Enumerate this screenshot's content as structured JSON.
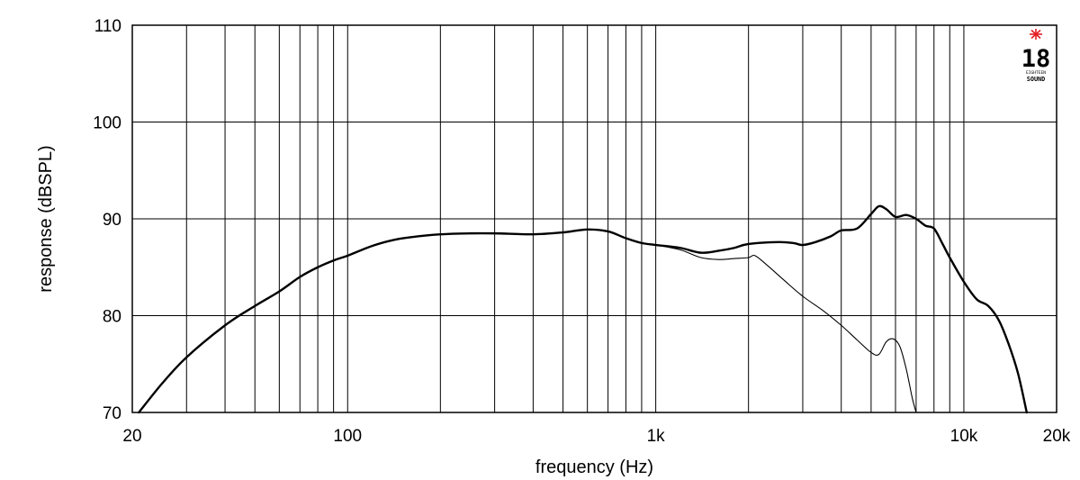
{
  "chart_data": {
    "type": "line",
    "title": "",
    "xlabel": "frequency (Hz)",
    "ylabel": "response (dBSPL)",
    "x_scale": "log",
    "xlim": [
      20,
      20000
    ],
    "ylim": [
      70,
      110
    ],
    "grid": true,
    "x_ticks": [
      {
        "value": 20,
        "label": "20"
      },
      {
        "value": 100,
        "label": "100"
      },
      {
        "value": 1000,
        "label": "1k"
      },
      {
        "value": 10000,
        "label": "10k"
      },
      {
        "value": 20000,
        "label": "20k"
      }
    ],
    "y_ticks": [
      {
        "value": 70,
        "label": "70"
      },
      {
        "value": 80,
        "label": "80"
      },
      {
        "value": 90,
        "label": "90"
      },
      {
        "value": 100,
        "label": "100"
      },
      {
        "value": 110,
        "label": "110"
      }
    ],
    "series": [
      {
        "style": "thick",
        "color": "#000000",
        "points": [
          [
            21,
            70.0
          ],
          [
            25,
            73.0
          ],
          [
            30,
            75.7
          ],
          [
            40,
            79.0
          ],
          [
            50,
            81.0
          ],
          [
            60,
            82.5
          ],
          [
            70,
            84.0
          ],
          [
            80,
            85.0
          ],
          [
            90,
            85.7
          ],
          [
            100,
            86.2
          ],
          [
            120,
            87.2
          ],
          [
            140,
            87.8
          ],
          [
            160,
            88.1
          ],
          [
            200,
            88.4
          ],
          [
            250,
            88.5
          ],
          [
            300,
            88.5
          ],
          [
            400,
            88.4
          ],
          [
            500,
            88.6
          ],
          [
            600,
            88.9
          ],
          [
            700,
            88.7
          ],
          [
            800,
            88.0
          ],
          [
            900,
            87.5
          ],
          [
            1000,
            87.3
          ],
          [
            1200,
            87.0
          ],
          [
            1400,
            86.5
          ],
          [
            1600,
            86.7
          ],
          [
            1800,
            87.0
          ],
          [
            2000,
            87.4
          ],
          [
            2500,
            87.6
          ],
          [
            2800,
            87.5
          ],
          [
            3000,
            87.3
          ],
          [
            3300,
            87.6
          ],
          [
            3700,
            88.2
          ],
          [
            4000,
            88.8
          ],
          [
            4500,
            89.0
          ],
          [
            5000,
            90.5
          ],
          [
            5300,
            91.3
          ],
          [
            5600,
            91.0
          ],
          [
            6000,
            90.2
          ],
          [
            6500,
            90.4
          ],
          [
            7000,
            90.0
          ],
          [
            7500,
            89.3
          ],
          [
            8000,
            89.0
          ],
          [
            8500,
            87.5
          ],
          [
            9000,
            86.0
          ],
          [
            10000,
            83.5
          ],
          [
            11000,
            81.7
          ],
          [
            12000,
            81.0
          ],
          [
            13000,
            79.5
          ],
          [
            14000,
            77.0
          ],
          [
            15000,
            74.0
          ],
          [
            16000,
            70.0
          ]
        ]
      },
      {
        "style": "thin",
        "color": "#000000",
        "points": [
          [
            1000,
            87.3
          ],
          [
            1200,
            86.8
          ],
          [
            1400,
            86.0
          ],
          [
            1600,
            85.8
          ],
          [
            1800,
            85.9
          ],
          [
            2000,
            86.0
          ],
          [
            2100,
            86.2
          ],
          [
            2300,
            85.2
          ],
          [
            2600,
            83.7
          ],
          [
            3000,
            82.0
          ],
          [
            3500,
            80.5
          ],
          [
            4000,
            79.0
          ],
          [
            4500,
            77.5
          ],
          [
            5000,
            76.2
          ],
          [
            5300,
            76.0
          ],
          [
            5600,
            77.3
          ],
          [
            5900,
            77.6
          ],
          [
            6200,
            76.8
          ],
          [
            6500,
            74.5
          ],
          [
            6800,
            71.5
          ],
          [
            7000,
            70.0
          ]
        ]
      }
    ],
    "annotations": [
      {
        "text": "18 EIGHTEEN SOUND",
        "kind": "logo",
        "position": "top-right",
        "accent": "#e31e24"
      }
    ]
  }
}
